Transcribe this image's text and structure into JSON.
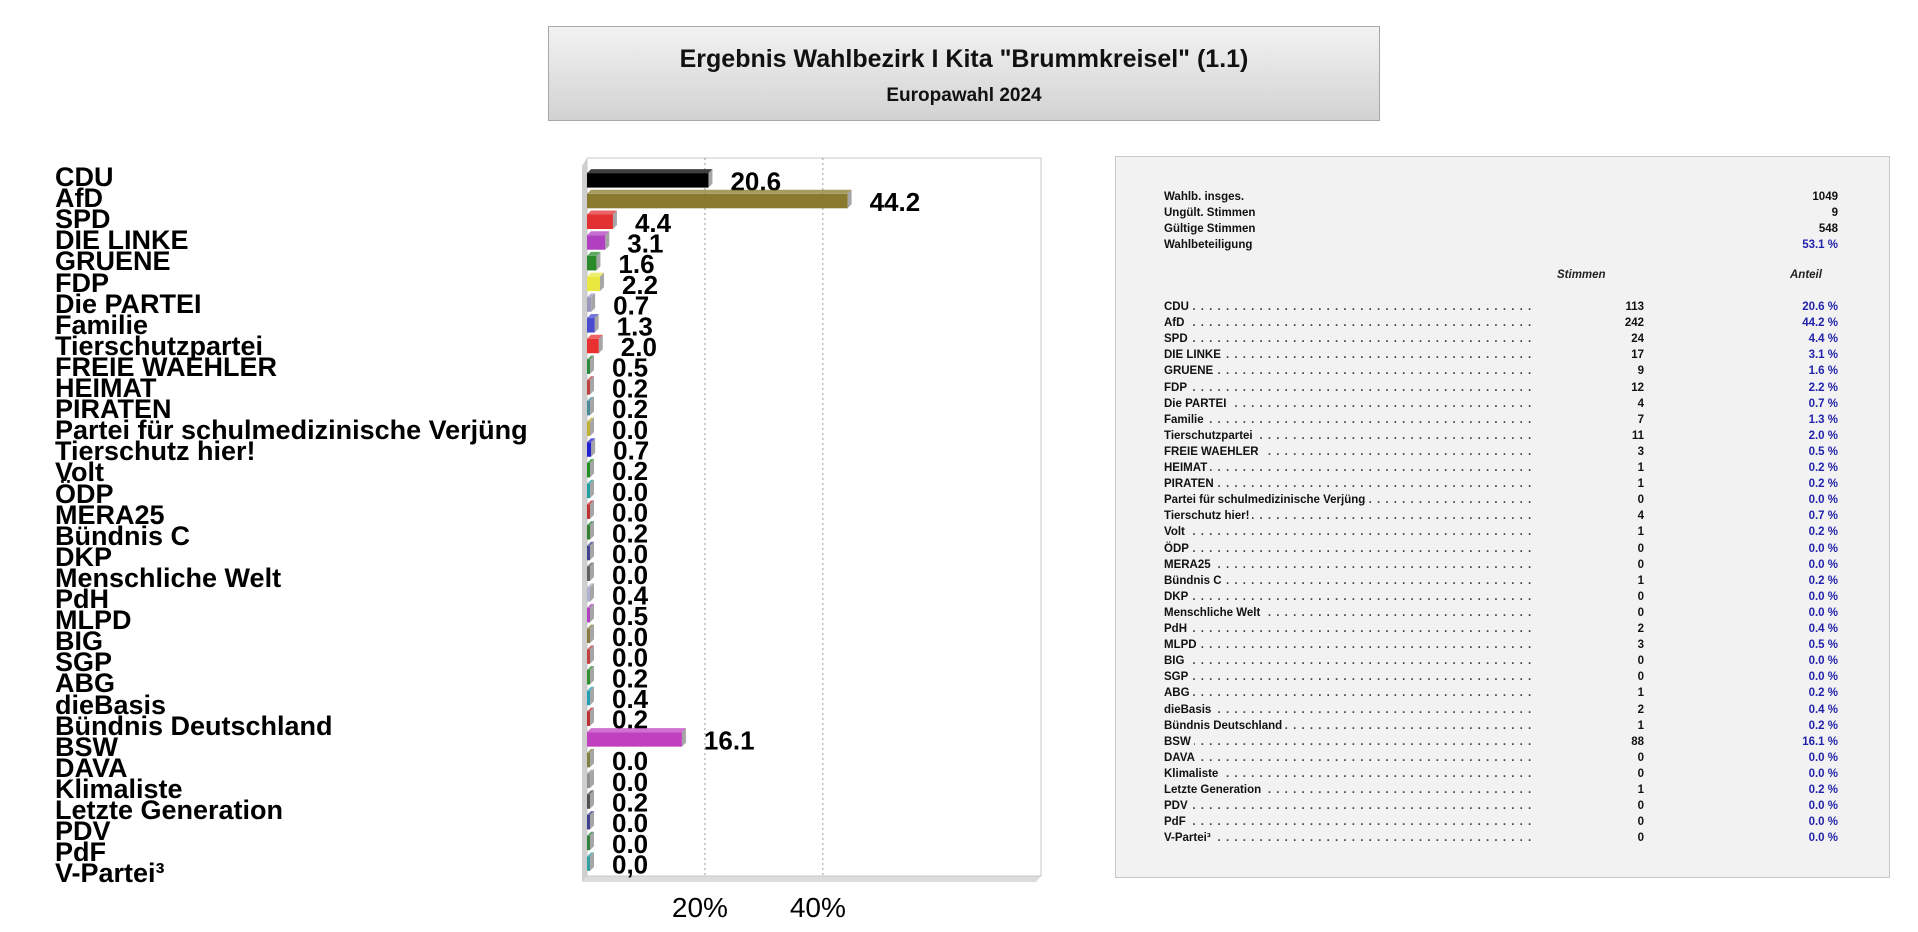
{
  "header": {
    "title": "Ergebnis Wahlbezirk I Kita \"Brummkreisel\" (1.1)",
    "subtitle": "Europawahl 2024"
  },
  "summary": [
    {
      "label": "Wahlb. insges.",
      "value": "1049"
    },
    {
      "label": "Ungült. Stimmen",
      "value": "9"
    },
    {
      "label": "Gültige Stimmen",
      "value": "548"
    },
    {
      "label": "Wahlbeteiligung",
      "value": "53.1 %"
    }
  ],
  "table_headers": {
    "votes": "Stimmen",
    "share": "Anteil"
  },
  "rows": [
    {
      "party": "CDU",
      "votes": "113",
      "share": "20.6 %"
    },
    {
      "party": "AfD",
      "votes": "242",
      "share": "44.2 %"
    },
    {
      "party": "SPD",
      "votes": "24",
      "share": "4.4 %"
    },
    {
      "party": "DIE LINKE",
      "votes": "17",
      "share": "3.1 %"
    },
    {
      "party": "GRUENE",
      "votes": "9",
      "share": "1.6 %"
    },
    {
      "party": "FDP",
      "votes": "12",
      "share": "2.2 %"
    },
    {
      "party": "Die PARTEI",
      "votes": "4",
      "share": "0.7 %"
    },
    {
      "party": "Familie",
      "votes": "7",
      "share": "1.3 %"
    },
    {
      "party": "Tierschutzpartei",
      "votes": "11",
      "share": "2.0 %"
    },
    {
      "party": "FREIE WAEHLER",
      "votes": "3",
      "share": "0.5 %"
    },
    {
      "party": "HEIMAT",
      "votes": "1",
      "share": "0.2 %"
    },
    {
      "party": "PIRATEN",
      "votes": "1",
      "share": "0.2 %"
    },
    {
      "party": "Partei für schulmedizinische Verjüng",
      "votes": "0",
      "share": "0.0 %"
    },
    {
      "party": "Tierschutz hier!",
      "votes": "4",
      "share": "0.7 %"
    },
    {
      "party": "Volt",
      "votes": "1",
      "share": "0.2 %"
    },
    {
      "party": "ÖDP",
      "votes": "0",
      "share": "0.0 %"
    },
    {
      "party": "MERA25",
      "votes": "0",
      "share": "0.0 %"
    },
    {
      "party": "Bündnis C",
      "votes": "1",
      "share": "0.2 %"
    },
    {
      "party": "DKP",
      "votes": "0",
      "share": "0.0 %"
    },
    {
      "party": "Menschliche Welt",
      "votes": "0",
      "share": "0.0 %"
    },
    {
      "party": "PdH",
      "votes": "2",
      "share": "0.4 %"
    },
    {
      "party": "MLPD",
      "votes": "3",
      "share": "0.5 %"
    },
    {
      "party": "BIG",
      "votes": "0",
      "share": "0.0 %"
    },
    {
      "party": "SGP",
      "votes": "0",
      "share": "0.0 %"
    },
    {
      "party": "ABG",
      "votes": "1",
      "share": "0.2 %"
    },
    {
      "party": "dieBasis",
      "votes": "2",
      "share": "0.4 %"
    },
    {
      "party": "Bündnis Deutschland",
      "votes": "1",
      "share": "0.2 %"
    },
    {
      "party": "BSW",
      "votes": "88",
      "share": "16.1 %"
    },
    {
      "party": "DAVA",
      "votes": "0",
      "share": "0.0 %"
    },
    {
      "party": "Klimaliste",
      "votes": "0",
      "share": "0.0 %"
    },
    {
      "party": "Letzte Generation",
      "votes": "1",
      "share": "0.2 %"
    },
    {
      "party": "PDV",
      "votes": "0",
      "share": "0.0 %"
    },
    {
      "party": "PdF",
      "votes": "0",
      "share": "0.0 %"
    },
    {
      "party": "V-Partei³",
      "votes": "0",
      "share": "0.0 %"
    }
  ],
  "chart_data": {
    "type": "bar",
    "orientation": "horizontal",
    "categories": [
      "CDU",
      "AfD",
      "SPD",
      "DIE LINKE",
      "GRUENE",
      "FDP",
      "Die PARTEI",
      "Familie",
      "Tierschutzpartei",
      "FREIE WAEHLER",
      "HEIMAT",
      "PIRATEN",
      "Partei für schulmedizinische Verjüng",
      "Tierschutz hier!",
      "Volt",
      "ÖDP",
      "MERA25",
      "Bündnis C",
      "DKP",
      "Menschliche Welt",
      "PdH",
      "MLPD",
      "BIG",
      "SGP",
      "ABG",
      "dieBasis",
      "Bündnis Deutschland",
      "BSW",
      "DAVA",
      "Klimaliste",
      "Letzte Generation",
      "PDV",
      "PdF",
      "V-Partei³"
    ],
    "values": [
      20.6,
      44.2,
      4.4,
      3.1,
      1.6,
      2.2,
      0.7,
      1.3,
      2.0,
      0.5,
      0.2,
      0.2,
      0.0,
      0.7,
      0.2,
      0.0,
      0.0,
      0.2,
      0.0,
      0.0,
      0.4,
      0.5,
      0.0,
      0.0,
      0.2,
      0.4,
      0.2,
      16.1,
      0.0,
      0.0,
      0.2,
      0.0,
      0.0,
      0.0
    ],
    "value_labels": [
      "20.6",
      "44.2",
      "4.4",
      "3.1",
      "1.6",
      "2.2",
      "0.7",
      "1.3",
      "2.0",
      "0.5",
      "0.2",
      "0.2",
      "0.0",
      "0.7",
      "0.2",
      "0.0",
      "0.0",
      "0.2",
      "0.0",
      "0.0",
      "0.4",
      "0.5",
      "0.0",
      "0.0",
      "0.2",
      "0.4",
      "0.2",
      "16.1",
      "0.0",
      "0.0",
      "0.2",
      "0.0",
      "0.0",
      "0,0"
    ],
    "colors": [
      "#000000",
      "#8a7a2e",
      "#e33030",
      "#b040c0",
      "#2a8a2a",
      "#e8e840",
      "#9999bb",
      "#4a4ad0",
      "#e83030",
      "#2a8a3a",
      "#c04040",
      "#4a8a9a",
      "#c0b030",
      "#2020d0",
      "#209020",
      "#20a0a0",
      "#c03030",
      "#308030",
      "#404090",
      "#606060",
      "#b0b0d0",
      "#b040c0",
      "#8a7a40",
      "#c04040",
      "#309030",
      "#20a0b0",
      "#c03030",
      "#c040c0",
      "#808040",
      "#909090",
      "#505050",
      "#404090",
      "#308040",
      "#30a0a0"
    ],
    "x_ticks": [
      "20%",
      "40%"
    ],
    "x_tick_values": [
      20,
      40
    ],
    "xlim": [
      0,
      77
    ],
    "grid": true
  }
}
